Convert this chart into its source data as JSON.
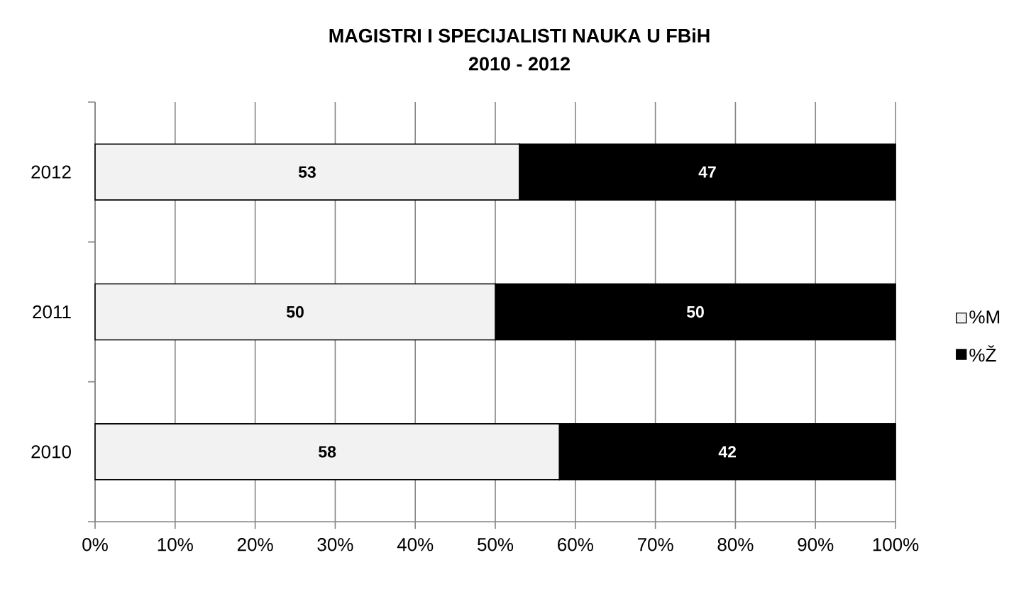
{
  "chart_data": {
    "type": "bar",
    "orientation": "horizontal",
    "stacked": true,
    "title": "MAGISTRI I SPECIJALISTI NAUKA U FBiH",
    "subtitle": "2010 - 2012",
    "categories": [
      "2012",
      "2011",
      "2010"
    ],
    "series": [
      {
        "name": "%M",
        "color": "#f2f2f2",
        "values": [
          53,
          50,
          58
        ]
      },
      {
        "name": "%Ž",
        "color": "#000000",
        "values": [
          47,
          50,
          42
        ]
      }
    ],
    "xlim": [
      0,
      100
    ],
    "xticks": [
      {
        "value": 0,
        "label": "0%"
      },
      {
        "value": 10,
        "label": "10%"
      },
      {
        "value": 20,
        "label": "20%"
      },
      {
        "value": 30,
        "label": "30%"
      },
      {
        "value": 40,
        "label": "40%"
      },
      {
        "value": 50,
        "label": "50%"
      },
      {
        "value": 60,
        "label": "60%"
      },
      {
        "value": 70,
        "label": "70%"
      },
      {
        "value": 80,
        "label": "80%"
      },
      {
        "value": 90,
        "label": "90%"
      },
      {
        "value": 100,
        "label": "100%"
      }
    ],
    "grid": "x",
    "legend": "right",
    "data_labels": true
  }
}
